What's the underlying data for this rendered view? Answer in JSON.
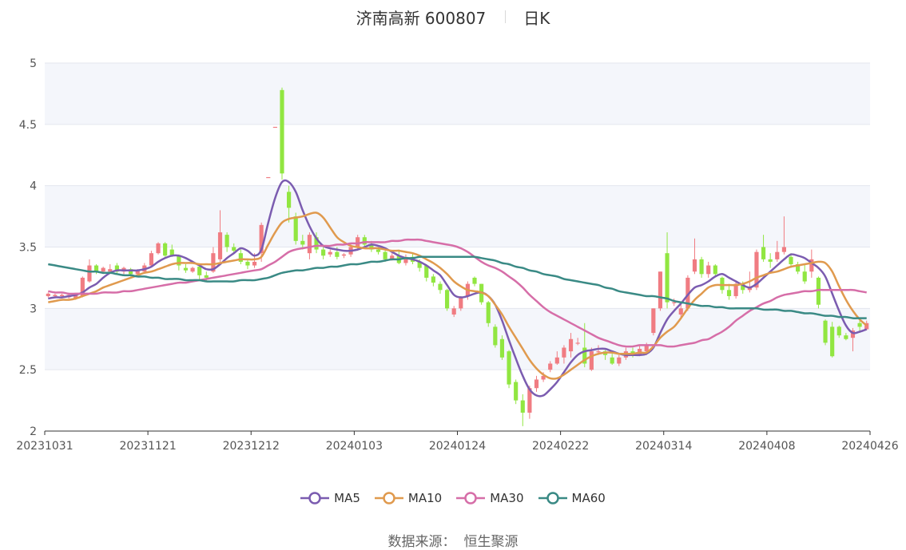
{
  "header": {
    "stock": "济南高新 600807",
    "period": "日K"
  },
  "source": {
    "label": "数据来源：",
    "value": "恒生聚源"
  },
  "colors": {
    "up": "#f07c82",
    "down": "#91e641",
    "MA5": "#7b5cb0",
    "MA10": "#e09a4e",
    "MA30": "#d66ea8",
    "MA60": "#3a8a85",
    "band": "#f4f6fb",
    "grid": "#e3e6ee",
    "axis": "#333333"
  },
  "chart_data": {
    "type": "candlestick",
    "title": "济南高新 600807",
    "ylim": [
      2,
      5
    ],
    "y_ticks": [
      "2",
      "2.5",
      "3",
      "3.5",
      "4",
      "4.5",
      "5"
    ],
    "x_ticks": [
      {
        "label": "20231031",
        "index": 0
      },
      {
        "label": "20231121",
        "index": 15
      },
      {
        "label": "20231212",
        "index": 30
      },
      {
        "label": "20240103",
        "index": 45
      },
      {
        "label": "20240124",
        "index": 60
      },
      {
        "label": "20240222",
        "index": 75
      },
      {
        "label": "20240314",
        "index": 90
      },
      {
        "label": "20240408",
        "index": 105
      },
      {
        "label": "20240426",
        "index": 119
      }
    ],
    "count": 120,
    "candles": [
      [
        3.1,
        3.12,
        3.09,
        3.13
      ],
      [
        3.1,
        3.11,
        3.09,
        3.12
      ],
      [
        3.1,
        3.11,
        3.08,
        3.12
      ],
      [
        3.09,
        3.11,
        3.08,
        3.12
      ],
      [
        3.08,
        3.11,
        3.07,
        3.12
      ],
      [
        3.1,
        3.25,
        3.09,
        3.26
      ],
      [
        3.22,
        3.35,
        3.21,
        3.4
      ],
      [
        3.35,
        3.3,
        3.28,
        3.36
      ],
      [
        3.3,
        3.33,
        3.28,
        3.34
      ],
      [
        3.3,
        3.32,
        3.29,
        3.36
      ],
      [
        3.35,
        3.3,
        3.28,
        3.37
      ],
      [
        3.3,
        3.33,
        3.28,
        3.34
      ],
      [
        3.32,
        3.28,
        3.26,
        3.33
      ],
      [
        3.28,
        3.31,
        3.27,
        3.32
      ],
      [
        3.3,
        3.35,
        3.29,
        3.37
      ],
      [
        3.35,
        3.45,
        3.34,
        3.47
      ],
      [
        3.45,
        3.53,
        3.44,
        3.54
      ],
      [
        3.53,
        3.43,
        3.42,
        3.54
      ],
      [
        3.48,
        3.43,
        3.42,
        3.52
      ],
      [
        3.43,
        3.35,
        3.31,
        3.44
      ],
      [
        3.33,
        3.31,
        3.29,
        3.36
      ],
      [
        3.3,
        3.33,
        3.29,
        3.34
      ],
      [
        3.34,
        3.27,
        3.23,
        3.35
      ],
      [
        3.27,
        3.25,
        3.22,
        3.3
      ],
      [
        3.3,
        3.45,
        3.29,
        3.5
      ],
      [
        3.4,
        3.62,
        3.38,
        3.8
      ],
      [
        3.6,
        3.5,
        3.46,
        3.62
      ],
      [
        3.5,
        3.47,
        3.45,
        3.53
      ],
      [
        3.45,
        3.38,
        3.36,
        3.48
      ],
      [
        3.38,
        3.35,
        3.32,
        3.4
      ],
      [
        3.35,
        3.38,
        3.33,
        3.45
      ],
      [
        3.45,
        3.68,
        3.38,
        3.7
      ],
      [
        4.07,
        4.07,
        4.07,
        4.07
      ],
      [
        4.48,
        4.48,
        4.48,
        4.48
      ],
      [
        4.78,
        4.1,
        4.05,
        4.8
      ],
      [
        3.95,
        3.82,
        3.7,
        4.0
      ],
      [
        3.75,
        3.55,
        3.52,
        3.78
      ],
      [
        3.55,
        3.52,
        3.48,
        3.6
      ],
      [
        3.45,
        3.6,
        3.4,
        3.62
      ],
      [
        3.58,
        3.48,
        3.45,
        3.62
      ],
      [
        3.48,
        3.43,
        3.4,
        3.5
      ],
      [
        3.44,
        3.46,
        3.42,
        3.48
      ],
      [
        3.46,
        3.42,
        3.4,
        3.5
      ],
      [
        3.43,
        3.44,
        3.41,
        3.45
      ],
      [
        3.44,
        3.5,
        3.42,
        3.53
      ],
      [
        3.5,
        3.58,
        3.47,
        3.6
      ],
      [
        3.58,
        3.52,
        3.49,
        3.6
      ],
      [
        3.52,
        3.48,
        3.46,
        3.55
      ],
      [
        3.48,
        3.46,
        3.44,
        3.5
      ],
      [
        3.46,
        3.4,
        3.38,
        3.47
      ],
      [
        3.4,
        3.43,
        3.39,
        3.45
      ],
      [
        3.43,
        3.37,
        3.36,
        3.48
      ],
      [
        3.37,
        3.42,
        3.35,
        3.44
      ],
      [
        3.42,
        3.38,
        3.36,
        3.45
      ],
      [
        3.38,
        3.33,
        3.3,
        3.4
      ],
      [
        3.35,
        3.25,
        3.22,
        3.36
      ],
      [
        3.26,
        3.21,
        3.18,
        3.28
      ],
      [
        3.2,
        3.15,
        3.12,
        3.22
      ],
      [
        3.15,
        3.0,
        2.98,
        3.16
      ],
      [
        2.95,
        3.0,
        2.93,
        3.02
      ],
      [
        3.0,
        3.09,
        2.98,
        3.1
      ],
      [
        3.1,
        3.2,
        3.07,
        3.22
      ],
      [
        3.25,
        3.2,
        3.18,
        3.26
      ],
      [
        3.2,
        3.05,
        3.03,
        3.2
      ],
      [
        3.05,
        2.88,
        2.85,
        3.06
      ],
      [
        2.85,
        2.7,
        2.68,
        2.87
      ],
      [
        2.75,
        2.6,
        2.58,
        2.78
      ],
      [
        2.65,
        2.38,
        2.35,
        2.66
      ],
      [
        2.4,
        2.25,
        2.22,
        2.42
      ],
      [
        2.25,
        2.15,
        2.04,
        2.3
      ],
      [
        2.15,
        2.35,
        2.1,
        2.37
      ],
      [
        2.35,
        2.42,
        2.32,
        2.45
      ],
      [
        2.42,
        2.45,
        2.4,
        2.48
      ],
      [
        2.5,
        2.55,
        2.48,
        2.57
      ],
      [
        2.55,
        2.6,
        2.54,
        2.65
      ],
      [
        2.6,
        2.68,
        2.55,
        2.7
      ],
      [
        2.65,
        2.75,
        2.6,
        2.8
      ],
      [
        2.72,
        2.72,
        2.7,
        2.76
      ],
      [
        2.68,
        2.55,
        2.52,
        2.88
      ],
      [
        2.5,
        2.65,
        2.49,
        2.68
      ],
      [
        2.65,
        2.65,
        2.62,
        2.7
      ],
      [
        2.65,
        2.62,
        2.58,
        2.66
      ],
      [
        2.6,
        2.55,
        2.54,
        2.63
      ],
      [
        2.55,
        2.6,
        2.53,
        2.62
      ],
      [
        2.6,
        2.65,
        2.58,
        2.68
      ],
      [
        2.65,
        2.62,
        2.6,
        2.68
      ],
      [
        2.62,
        2.67,
        2.61,
        2.7
      ],
      [
        2.65,
        2.7,
        2.62,
        2.72
      ],
      [
        2.8,
        3.0,
        2.78,
        3.0
      ],
      [
        3.0,
        3.3,
        2.98,
        3.3
      ],
      [
        3.45,
        3.05,
        3.0,
        3.62
      ],
      [
        3.05,
        3.05,
        3.02,
        3.08
      ],
      [
        2.95,
        3.0,
        2.92,
        3.05
      ],
      [
        3.0,
        3.25,
        2.98,
        3.27
      ],
      [
        3.3,
        3.4,
        3.28,
        3.57
      ],
      [
        3.4,
        3.28,
        3.25,
        3.42
      ],
      [
        3.28,
        3.35,
        3.25,
        3.38
      ],
      [
        3.35,
        3.28,
        3.26,
        3.36
      ],
      [
        3.25,
        3.15,
        3.12,
        3.26
      ],
      [
        3.15,
        3.1,
        3.07,
        3.2
      ],
      [
        3.1,
        3.2,
        3.08,
        3.22
      ],
      [
        3.2,
        3.15,
        3.12,
        3.22
      ],
      [
        3.15,
        3.17,
        3.13,
        3.3
      ],
      [
        3.17,
        3.46,
        3.15,
        3.48
      ],
      [
        3.5,
        3.4,
        3.38,
        3.6
      ],
      [
        3.4,
        3.38,
        3.33,
        3.45
      ],
      [
        3.4,
        3.46,
        3.38,
        3.55
      ],
      [
        3.46,
        3.5,
        3.44,
        3.75
      ],
      [
        3.42,
        3.36,
        3.33,
        3.45
      ],
      [
        3.36,
        3.3,
        3.28,
        3.38
      ],
      [
        3.3,
        3.22,
        3.2,
        3.36
      ],
      [
        3.3,
        3.4,
        3.25,
        3.48
      ],
      [
        3.25,
        3.03,
        3.0,
        3.26
      ],
      [
        2.9,
        2.72,
        2.7,
        2.91
      ],
      [
        2.85,
        2.61,
        2.6,
        2.89
      ],
      [
        2.85,
        2.78,
        2.76,
        2.86
      ],
      [
        2.78,
        2.75,
        2.74,
        2.8
      ],
      [
        2.76,
        2.82,
        2.65,
        2.84
      ],
      [
        2.88,
        2.85,
        2.8,
        2.9
      ],
      [
        2.83,
        2.88,
        2.82,
        2.9
      ]
    ],
    "series": [
      {
        "name": "MA5",
        "values": [
          3.08,
          3.09,
          3.09,
          3.1,
          3.11,
          3.13,
          3.17,
          3.2,
          3.25,
          3.29,
          3.31,
          3.31,
          3.31,
          3.31,
          3.32,
          3.34,
          3.38,
          3.41,
          3.43,
          3.43,
          3.41,
          3.38,
          3.35,
          3.32,
          3.32,
          3.36,
          3.41,
          3.45,
          3.49,
          3.47,
          3.43,
          3.48,
          3.7,
          3.9,
          4.03,
          4.03,
          3.95,
          3.8,
          3.67,
          3.57,
          3.51,
          3.49,
          3.48,
          3.47,
          3.47,
          3.48,
          3.5,
          3.52,
          3.51,
          3.49,
          3.46,
          3.43,
          3.41,
          3.4,
          3.38,
          3.35,
          3.31,
          3.27,
          3.19,
          3.11,
          3.09,
          3.1,
          3.12,
          3.13,
          3.1,
          3.03,
          2.9,
          2.74,
          2.59,
          2.45,
          2.34,
          2.29,
          2.29,
          2.34,
          2.4,
          2.48,
          2.56,
          2.62,
          2.65,
          2.66,
          2.67,
          2.67,
          2.65,
          2.63,
          2.62,
          2.62,
          2.62,
          2.63,
          2.68,
          2.8,
          2.91,
          2.98,
          3.04,
          3.11,
          3.17,
          3.19,
          3.22,
          3.26,
          3.28,
          3.25,
          3.22,
          3.19,
          3.17,
          3.2,
          3.25,
          3.3,
          3.35,
          3.4,
          3.44,
          3.43,
          3.41,
          3.37,
          3.33,
          3.26,
          3.12,
          2.98,
          2.86,
          2.8,
          2.81,
          2.83
        ]
      },
      {
        "name": "MA10",
        "values": [
          3.05,
          3.06,
          3.07,
          3.07,
          3.08,
          3.1,
          3.12,
          3.14,
          3.17,
          3.19,
          3.21,
          3.23,
          3.25,
          3.27,
          3.29,
          3.3,
          3.32,
          3.34,
          3.36,
          3.37,
          3.37,
          3.37,
          3.36,
          3.36,
          3.36,
          3.37,
          3.38,
          3.39,
          3.4,
          3.4,
          3.4,
          3.42,
          3.52,
          3.62,
          3.7,
          3.73,
          3.74,
          3.75,
          3.77,
          3.78,
          3.74,
          3.66,
          3.58,
          3.54,
          3.51,
          3.5,
          3.49,
          3.49,
          3.49,
          3.48,
          3.47,
          3.47,
          3.46,
          3.45,
          3.43,
          3.4,
          3.37,
          3.33,
          3.28,
          3.22,
          3.18,
          3.15,
          3.14,
          3.13,
          3.1,
          3.03,
          2.95,
          2.85,
          2.76,
          2.67,
          2.58,
          2.51,
          2.46,
          2.43,
          2.43,
          2.46,
          2.5,
          2.54,
          2.58,
          2.61,
          2.63,
          2.64,
          2.64,
          2.63,
          2.63,
          2.63,
          2.64,
          2.64,
          2.69,
          2.76,
          2.81,
          2.85,
          2.92,
          3.0,
          3.07,
          3.12,
          3.17,
          3.19,
          3.19,
          3.19,
          3.19,
          3.2,
          3.22,
          3.25,
          3.27,
          3.29,
          3.3,
          3.32,
          3.34,
          3.35,
          3.36,
          3.37,
          3.38,
          3.37,
          3.3,
          3.18,
          3.07,
          2.98,
          2.91,
          2.86
        ]
      },
      {
        "name": "MA30",
        "values": [
          3.14,
          3.13,
          3.13,
          3.12,
          3.12,
          3.12,
          3.12,
          3.12,
          3.13,
          3.13,
          3.13,
          3.14,
          3.14,
          3.15,
          3.16,
          3.17,
          3.18,
          3.19,
          3.2,
          3.21,
          3.21,
          3.22,
          3.23,
          3.24,
          3.25,
          3.26,
          3.27,
          3.28,
          3.29,
          3.3,
          3.31,
          3.32,
          3.35,
          3.38,
          3.42,
          3.46,
          3.48,
          3.49,
          3.5,
          3.51,
          3.51,
          3.51,
          3.52,
          3.52,
          3.53,
          3.53,
          3.54,
          3.54,
          3.54,
          3.54,
          3.55,
          3.55,
          3.56,
          3.56,
          3.56,
          3.55,
          3.54,
          3.53,
          3.52,
          3.51,
          3.49,
          3.46,
          3.42,
          3.38,
          3.35,
          3.33,
          3.3,
          3.26,
          3.22,
          3.17,
          3.11,
          3.06,
          3.01,
          2.97,
          2.94,
          2.91,
          2.88,
          2.85,
          2.82,
          2.79,
          2.76,
          2.74,
          2.72,
          2.7,
          2.69,
          2.69,
          2.7,
          2.7,
          2.7,
          2.7,
          2.69,
          2.69,
          2.7,
          2.71,
          2.72,
          2.74,
          2.75,
          2.78,
          2.81,
          2.85,
          2.9,
          2.94,
          2.98,
          3.01,
          3.04,
          3.06,
          3.09,
          3.11,
          3.12,
          3.13,
          3.14,
          3.14,
          3.15,
          3.15,
          3.15,
          3.15,
          3.15,
          3.15,
          3.14,
          3.13
        ]
      },
      {
        "name": "MA60",
        "values": [
          3.36,
          3.35,
          3.34,
          3.33,
          3.32,
          3.31,
          3.3,
          3.3,
          3.29,
          3.29,
          3.28,
          3.27,
          3.27,
          3.26,
          3.26,
          3.25,
          3.25,
          3.24,
          3.24,
          3.24,
          3.23,
          3.23,
          3.23,
          3.22,
          3.22,
          3.22,
          3.22,
          3.22,
          3.23,
          3.23,
          3.23,
          3.24,
          3.25,
          3.27,
          3.29,
          3.3,
          3.31,
          3.31,
          3.32,
          3.33,
          3.33,
          3.34,
          3.34,
          3.35,
          3.36,
          3.36,
          3.37,
          3.38,
          3.38,
          3.39,
          3.4,
          3.4,
          3.41,
          3.41,
          3.42,
          3.42,
          3.42,
          3.42,
          3.42,
          3.42,
          3.42,
          3.42,
          3.42,
          3.41,
          3.4,
          3.39,
          3.37,
          3.36,
          3.34,
          3.33,
          3.31,
          3.3,
          3.28,
          3.27,
          3.26,
          3.24,
          3.23,
          3.22,
          3.21,
          3.2,
          3.19,
          3.17,
          3.16,
          3.14,
          3.13,
          3.12,
          3.11,
          3.1,
          3.1,
          3.09,
          3.08,
          3.06,
          3.05,
          3.04,
          3.03,
          3.02,
          3.02,
          3.01,
          3.01,
          3.0,
          3.0,
          3.0,
          3.0,
          3.0,
          2.99,
          2.99,
          2.99,
          2.98,
          2.98,
          2.97,
          2.96,
          2.96,
          2.95,
          2.94,
          2.94,
          2.93,
          2.93,
          2.92,
          2.92,
          2.92
        ]
      }
    ],
    "legend": [
      "MA5",
      "MA10",
      "MA30",
      "MA60"
    ],
    "legend_position": "bottom",
    "grid": true
  }
}
